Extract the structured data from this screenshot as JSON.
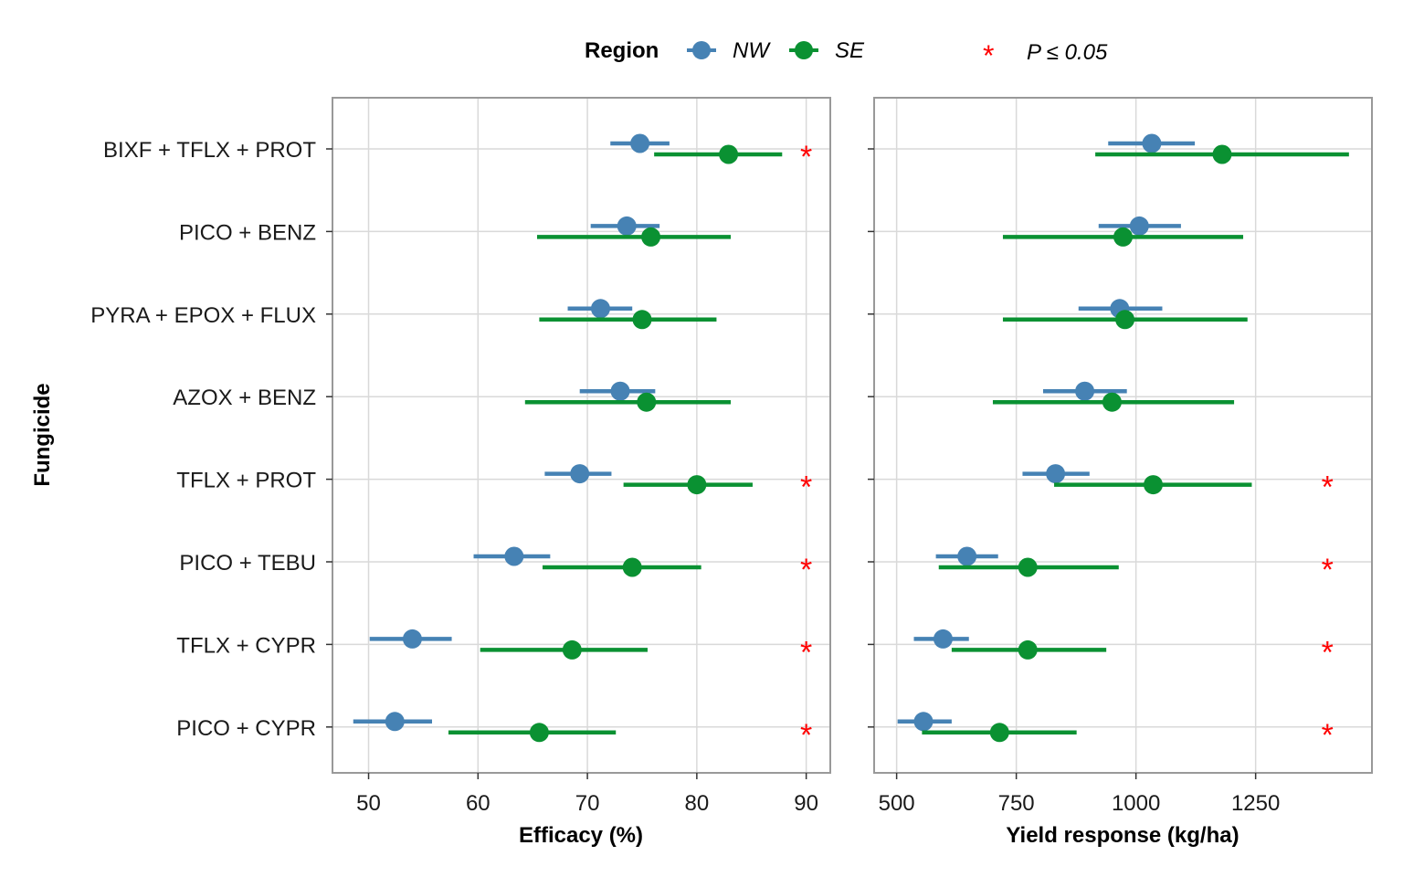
{
  "colors": {
    "NW": "#4682B4",
    "SE": "#0A9132",
    "significance": "#FF0000",
    "grid": "#D9D9D9",
    "frame": "#999999"
  },
  "legend": {
    "title": "Region",
    "entries": [
      "NW",
      "SE"
    ],
    "significance_symbol": "*",
    "significance_label": "P ≤ 0.05",
    "placement": "top"
  },
  "chart_data": [
    {
      "type": "dot-errorbar",
      "panel": "efficacy",
      "xlabel": "Efficacy (%)",
      "ylabel": "Fungicide",
      "xlim": [
        46.7,
        92.2
      ],
      "xticks": [
        50,
        60,
        70,
        80,
        90
      ],
      "grid": true,
      "categories": [
        "BIXF + TFLX + PROT",
        "PICO + BENZ",
        "PYRA + EPOX + FLUX",
        "AZOX + BENZ",
        "TFLX + PROT",
        "PICO + TEBU",
        "TFLX + CYPR",
        "PICO + CYPR"
      ],
      "series": [
        {
          "name": "NW",
          "values": [
            74.8,
            73.6,
            71.2,
            73.0,
            69.3,
            63.3,
            54.0,
            52.4
          ],
          "lower": [
            72.1,
            70.3,
            68.2,
            69.3,
            66.1,
            59.6,
            50.1,
            48.6
          ],
          "upper": [
            77.5,
            76.6,
            74.1,
            76.2,
            72.2,
            66.6,
            57.6,
            55.8
          ]
        },
        {
          "name": "SE",
          "values": [
            82.9,
            75.8,
            75.0,
            75.4,
            80.0,
            74.1,
            68.6,
            65.6
          ],
          "lower": [
            76.1,
            65.4,
            65.6,
            64.3,
            73.3,
            65.9,
            60.2,
            57.3
          ],
          "upper": [
            87.8,
            83.1,
            81.8,
            83.1,
            85.1,
            80.4,
            75.5,
            72.6
          ]
        }
      ],
      "significant": [
        true,
        false,
        false,
        false,
        true,
        true,
        true,
        true
      ],
      "significance_x": 90
    },
    {
      "type": "dot-errorbar",
      "panel": "yield",
      "xlabel": "Yield response (kg/ha)",
      "xlim": [
        453,
        1493
      ],
      "xticks": [
        500,
        750,
        1000,
        1250
      ],
      "grid": true,
      "categories": [
        "BIXF + TFLX + PROT",
        "PICO + BENZ",
        "PYRA + EPOX + FLUX",
        "AZOX + BENZ",
        "TFLX + PROT",
        "PICO + TEBU",
        "TFLX + CYPR",
        "PICO + CYPR"
      ],
      "series": [
        {
          "name": "NW",
          "values": [
            1033,
            1007,
            966,
            893,
            832,
            647,
            597,
            556
          ],
          "lower": [
            942,
            922,
            880,
            806,
            763,
            582,
            536,
            502
          ],
          "upper": [
            1123,
            1094,
            1055,
            981,
            903,
            712,
            651,
            615
          ]
        },
        {
          "name": "SE",
          "values": [
            1180,
            973,
            977,
            950,
            1036,
            774,
            774,
            715
          ],
          "lower": [
            915,
            722,
            722,
            701,
            829,
            588,
            615,
            553
          ],
          "upper": [
            1445,
            1224,
            1233,
            1205,
            1242,
            964,
            938,
            876
          ]
        }
      ],
      "significant": [
        false,
        false,
        false,
        false,
        true,
        true,
        true,
        true
      ],
      "significance_x": 1400
    }
  ]
}
